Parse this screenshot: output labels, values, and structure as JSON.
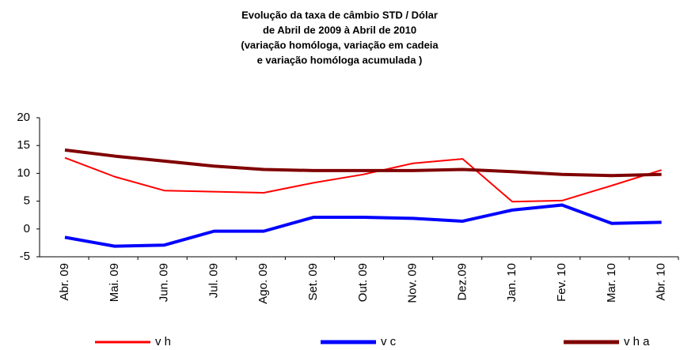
{
  "chart_data": {
    "type": "line",
    "title": [
      "Evolução da taxa de câmbio STD / Dólar",
      "de Abril de 2009 à Abril de 2010",
      "(variação homóloga, variação em cadeia",
      "e variação homóloga acumulada )"
    ],
    "categories": [
      "Abr. 09",
      "Mai. 09",
      "Jun. 09",
      "Jul. 09",
      "Ago. 09",
      "Set. 09",
      "Out. 09",
      "Nov. 09",
      "Dez.09",
      "Jan. 10",
      "Fev. 10",
      "Mar. 10",
      "Abr. 10"
    ],
    "series": [
      {
        "name": "v h",
        "color": "#ff0000",
        "values": [
          12.8,
          9.4,
          6.9,
          6.7,
          6.5,
          8.3,
          9.8,
          11.8,
          12.6,
          4.9,
          5.1,
          7.8,
          10.6
        ]
      },
      {
        "name": "v c",
        "color": "#0000ff",
        "values": [
          -1.5,
          -3.1,
          -2.9,
          -0.4,
          -0.4,
          2.1,
          2.1,
          1.9,
          1.4,
          3.4,
          4.3,
          1.0,
          1.2
        ]
      },
      {
        "name": "v h a",
        "color": "#800000",
        "values": [
          14.2,
          13.1,
          12.2,
          11.3,
          10.7,
          10.5,
          10.5,
          10.5,
          10.7,
          10.3,
          9.8,
          9.6,
          9.8
        ]
      }
    ],
    "ylim": [
      -5,
      20
    ],
    "yticks": [
      -5,
      0,
      5,
      10,
      15,
      20
    ],
    "legend": "bottom"
  }
}
